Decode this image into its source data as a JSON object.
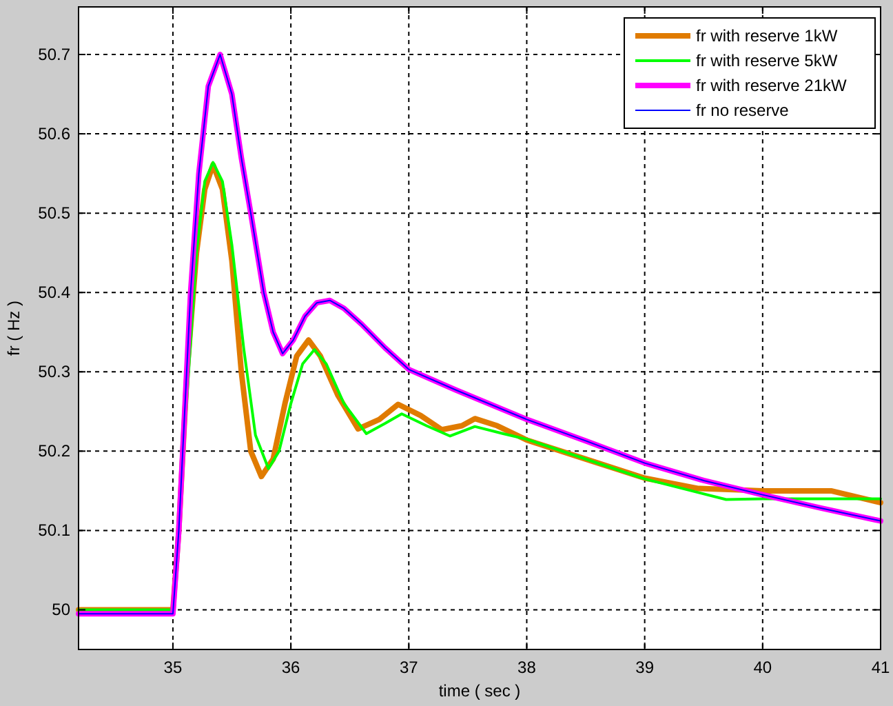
{
  "chart_data": {
    "type": "line",
    "xlabel": "time ( sec )",
    "ylabel": "fr ( Hz )",
    "xlim": [
      34.2,
      41
    ],
    "ylim": [
      49.95,
      50.76
    ],
    "xticks": [
      35,
      36,
      37,
      38,
      39,
      40,
      41
    ],
    "yticks": [
      50,
      50.1,
      50.2,
      50.3,
      50.4,
      50.5,
      50.6,
      50.7
    ],
    "grid": true,
    "legend": "top right",
    "line_style": "solid",
    "marker": "none",
    "series": [
      {
        "name": "fr with reserve 1kW",
        "color": "#e07b00",
        "x": [
          34.2,
          35,
          35.05,
          35.12,
          35.2,
          35.27,
          35.34,
          35.42,
          35.5,
          35.58,
          35.66,
          35.75,
          35.85,
          35.95,
          36.05,
          36.15,
          36.25,
          36.4,
          36.57,
          36.75,
          36.91,
          37.1,
          37.28,
          37.45,
          37.56,
          37.75,
          38,
          38.5,
          39,
          39.45,
          40,
          40.58,
          41
        ],
        "values": [
          50,
          50,
          50.1,
          50.3,
          50.45,
          50.53,
          50.561,
          50.53,
          50.44,
          50.3,
          50.2,
          50.168,
          50.19,
          50.26,
          50.32,
          50.34,
          50.32,
          50.27,
          50.228,
          50.24,
          50.259,
          50.245,
          50.227,
          50.232,
          50.241,
          50.232,
          50.214,
          50.19,
          50.166,
          50.153,
          50.15,
          50.15,
          50.135
        ]
      },
      {
        "name": "fr with reserve 5kW",
        "color": "#00ff00",
        "x": [
          34.2,
          35,
          35.2,
          35.27,
          35.34,
          35.42,
          35.5,
          35.6,
          35.7,
          35.81,
          35.9,
          36,
          36.1,
          36.2,
          36.3,
          36.45,
          36.64,
          36.8,
          36.94,
          37.15,
          37.35,
          37.56,
          37.8,
          38,
          38.5,
          39,
          39.69,
          40,
          41
        ],
        "values": [
          50,
          50,
          50.45,
          50.54,
          50.564,
          50.54,
          50.46,
          50.33,
          50.22,
          50.178,
          50.2,
          50.26,
          50.31,
          50.328,
          50.31,
          50.26,
          50.222,
          50.235,
          50.247,
          50.232,
          50.219,
          50.231,
          50.222,
          50.215,
          50.19,
          50.165,
          50.139,
          50.14,
          50.14
        ]
      },
      {
        "name": "fr with reserve 21kW",
        "color": "#ff00ff",
        "x": [
          34.2,
          35,
          35.05,
          35.1,
          35.15,
          35.22,
          35.3,
          35.4,
          35.5,
          35.58,
          35.66,
          35.77,
          35.85,
          35.93,
          36.02,
          36.12,
          36.22,
          36.33,
          36.45,
          36.6,
          36.8,
          37,
          37.4,
          38,
          38.5,
          39,
          39.5,
          40,
          40.5,
          41
        ],
        "values": [
          49.995,
          49.995,
          50.1,
          50.25,
          50.4,
          50.55,
          50.66,
          50.7,
          50.65,
          50.57,
          50.5,
          50.4,
          50.35,
          50.323,
          50.34,
          50.37,
          50.387,
          50.39,
          50.38,
          50.36,
          50.33,
          50.303,
          50.277,
          50.24,
          50.213,
          50.185,
          50.163,
          50.145,
          50.128,
          50.112
        ]
      },
      {
        "name": "fr no reserve",
        "color": "#0000ff",
        "x": [
          34.2,
          35,
          35.05,
          35.1,
          35.15,
          35.22,
          35.3,
          35.4,
          35.5,
          35.58,
          35.66,
          35.77,
          35.85,
          35.93,
          36.02,
          36.12,
          36.22,
          36.33,
          36.45,
          36.6,
          36.8,
          37,
          37.4,
          38,
          38.5,
          39,
          39.5,
          40,
          40.5,
          41
        ],
        "values": [
          49.995,
          49.995,
          50.1,
          50.25,
          50.4,
          50.55,
          50.66,
          50.7,
          50.65,
          50.57,
          50.5,
          50.4,
          50.35,
          50.323,
          50.34,
          50.37,
          50.387,
          50.39,
          50.38,
          50.36,
          50.33,
          50.303,
          50.277,
          50.24,
          50.213,
          50.185,
          50.163,
          50.145,
          50.128,
          50.112
        ]
      }
    ]
  }
}
